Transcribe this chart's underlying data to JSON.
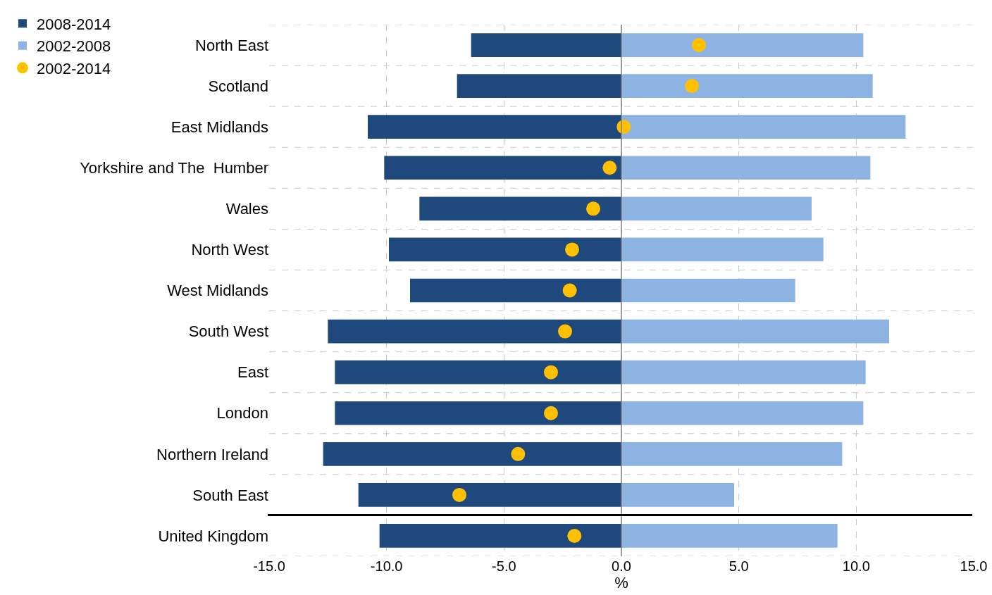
{
  "chart_data": {
    "type": "bar",
    "orientation": "horizontal",
    "stacked": true,
    "xlabel": "%",
    "categories": [
      "North East",
      "Scotland",
      "East Midlands",
      "Yorkshire and The  Humber",
      "Wales",
      "North West",
      "West Midlands",
      "South West",
      "East",
      "London",
      "Northern Ireland",
      "South East",
      "United Kingdom"
    ],
    "series": [
      {
        "name": "2008-2014",
        "color": "#1f497d",
        "values": [
          -6.4,
          -7.0,
          -10.8,
          -10.1,
          -8.6,
          -9.9,
          -9.0,
          -12.5,
          -12.2,
          -12.2,
          -12.7,
          -11.2,
          -10.3
        ]
      },
      {
        "name": "2002-2008",
        "color": "#8db3e2",
        "values": [
          10.3,
          10.7,
          12.1,
          10.6,
          8.1,
          8.6,
          7.4,
          11.4,
          10.4,
          10.3,
          9.4,
          4.8,
          9.2
        ]
      },
      {
        "name": "2002-2014",
        "type": "scatter",
        "marker": "circle",
        "color": "#ffc000",
        "values": [
          3.3,
          3.0,
          0.1,
          -0.5,
          -1.2,
          -2.1,
          -2.2,
          -2.4,
          -3.0,
          -3.0,
          -4.4,
          -6.9,
          -2.0
        ]
      }
    ],
    "xlim": [
      -15,
      15
    ],
    "xticks": [
      {
        "value": -15,
        "label": "-15.0"
      },
      {
        "value": -10,
        "label": "-10.0"
      },
      {
        "value": -5,
        "label": "-5.0"
      },
      {
        "value": 0,
        "label": "0.0"
      },
      {
        "value": 5,
        "label": "5.0"
      },
      {
        "value": 10,
        "label": "10.0"
      },
      {
        "value": 15,
        "label": "15.0"
      }
    ],
    "ref_lines": [
      {
        "axis": "x",
        "value": 0,
        "color": "#7f7f7f"
      }
    ],
    "grid": true,
    "legend": "top left"
  }
}
